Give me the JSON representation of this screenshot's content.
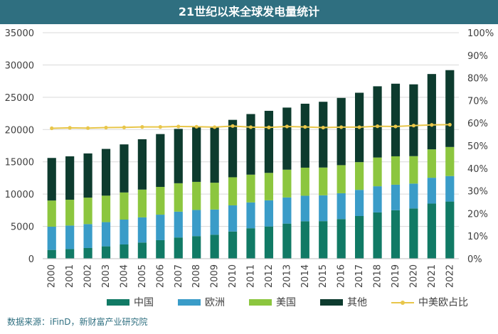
{
  "chart_data": {
    "type": "bar",
    "stacked": true,
    "title": "21世纪以来全球发电量统计",
    "categories": [
      "2000",
      "2001",
      "2002",
      "2003",
      "2004",
      "2005",
      "2006",
      "2007",
      "2008",
      "2009",
      "2010",
      "2011",
      "2012",
      "2013",
      "2014",
      "2015",
      "2016",
      "2017",
      "2018",
      "2019",
      "2020",
      "2021",
      "2022"
    ],
    "series": [
      {
        "name": "中国",
        "color": "#117a65",
        "values": [
          1356,
          1480,
          1654,
          1911,
          2203,
          2500,
          2866,
          3282,
          3496,
          3714,
          4208,
          4713,
          4988,
          5432,
          5795,
          5815,
          6133,
          6604,
          7166,
          7504,
          7779,
          8534,
          8849
        ]
      },
      {
        "name": "欧洲",
        "color": "#3a9cc8",
        "values": [
          3600,
          3650,
          3700,
          3750,
          3850,
          3900,
          3950,
          4000,
          4050,
          3900,
          4050,
          4000,
          4050,
          4050,
          3950,
          4000,
          4000,
          4050,
          4050,
          3950,
          3850,
          4000,
          3950
        ]
      },
      {
        "name": "美国",
        "color": "#8cc63f",
        "values": [
          4050,
          4000,
          4100,
          4100,
          4200,
          4300,
          4300,
          4400,
          4350,
          4150,
          4350,
          4300,
          4250,
          4300,
          4350,
          4300,
          4350,
          4300,
          4450,
          4400,
          4250,
          4400,
          4500
        ]
      },
      {
        "name": "其他",
        "color": "#0d3b2e",
        "values": [
          6594,
          6720,
          6846,
          7239,
          7447,
          7800,
          8184,
          8418,
          8604,
          8536,
          8892,
          9387,
          9612,
          9618,
          9905,
          10185,
          10417,
          10746,
          11034,
          11246,
          11121,
          11666,
          11901
        ]
      }
    ],
    "line": {
      "name": "中美欧占比",
      "color": "#e8c64a",
      "values": [
        0.577,
        0.579,
        0.578,
        0.58,
        0.581,
        0.583,
        0.583,
        0.585,
        0.584,
        0.582,
        0.587,
        0.582,
        0.581,
        0.585,
        0.583,
        0.58,
        0.582,
        0.582,
        0.586,
        0.585,
        0.589,
        0.592,
        0.593
      ]
    },
    "yleft": {
      "min": 0,
      "max": 35000,
      "ticks": [
        "0",
        "5000",
        "10000",
        "15000",
        "20000",
        "25000",
        "30000",
        "35000"
      ]
    },
    "yright": {
      "min": 0,
      "max": 1,
      "ticks": [
        "0%",
        "10%",
        "20%",
        "30%",
        "40%",
        "50%",
        "60%",
        "70%",
        "80%",
        "90%",
        "100%"
      ]
    },
    "legend_position": "bottom",
    "grid": true
  },
  "source": "数据来源：iFinD，新财富产业研究院"
}
